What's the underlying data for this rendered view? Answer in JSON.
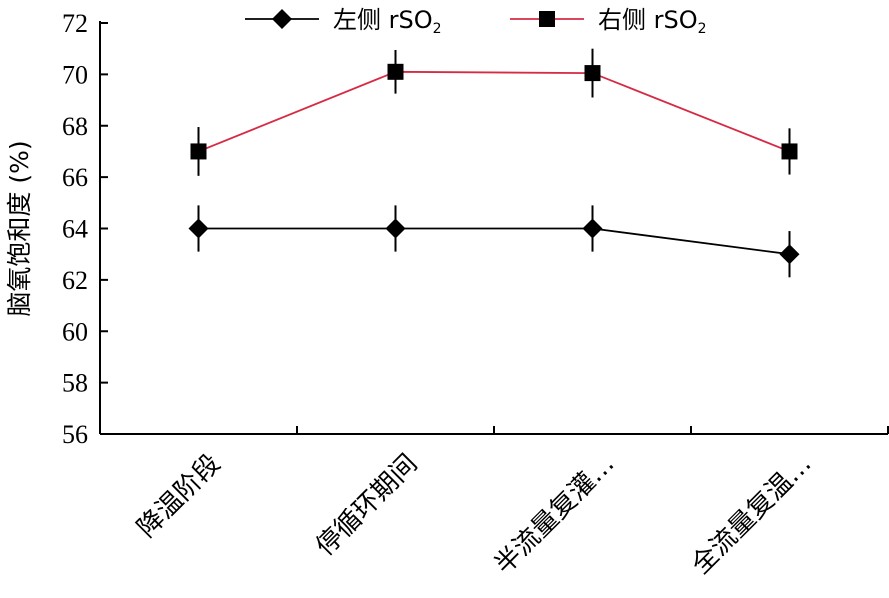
{
  "chart_data": {
    "type": "line",
    "categories": [
      "降温阶段",
      "停循环期间",
      "半流量复灌…",
      "全流量复温…"
    ],
    "ylabel": "脑氧饱和度 (%)",
    "ylim": [
      56,
      72
    ],
    "yticks": [
      56,
      58,
      60,
      62,
      64,
      66,
      68,
      70,
      72
    ],
    "grid": false,
    "legend_position": "top",
    "series": [
      {
        "name": "左侧 rSO2",
        "name_main": "左侧 rSO",
        "name_sub": "2",
        "marker": "diamond",
        "color": "#000000",
        "values": [
          64.0,
          64.0,
          64.0,
          63.0
        ],
        "error": [
          0.9,
          0.9,
          0.9,
          0.9
        ]
      },
      {
        "name": "右侧 rSO2",
        "name_main": "右侧 rSO",
        "name_sub": "2",
        "marker": "square",
        "color": "#d62b45",
        "values": [
          67.0,
          70.1,
          70.05,
          67.0
        ],
        "error": [
          0.95,
          0.85,
          0.95,
          0.9
        ]
      }
    ]
  }
}
